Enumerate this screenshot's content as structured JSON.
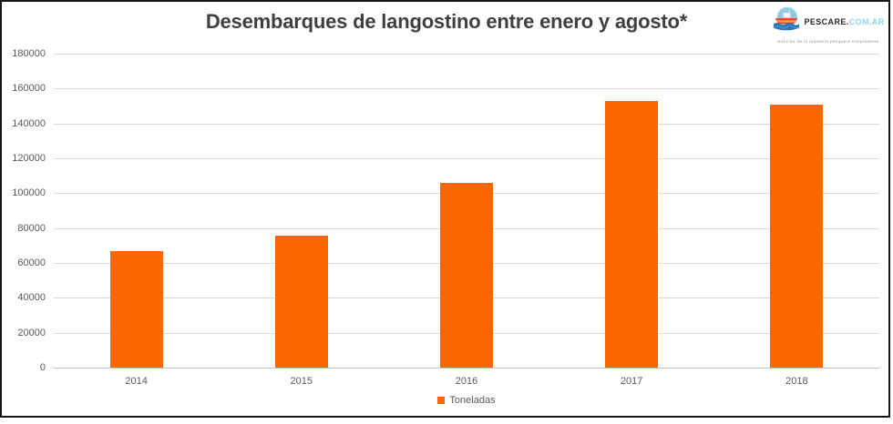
{
  "logo": {
    "name_dark": "PESCARE.",
    "name_light": "COM.AR",
    "tagline": "Noticias de la industria pesquera marplatense",
    "icon": "fishing-boat-icon"
  },
  "chart_data": {
    "type": "bar",
    "title": "Desembarques de langostino entre enero y agosto*",
    "categories": [
      "2014",
      "2015",
      "2016",
      "2017",
      "2018"
    ],
    "series": [
      {
        "name": "Toneladas",
        "values": [
          67000,
          75500,
          106000,
          153000,
          151000
        ]
      }
    ],
    "ylim": [
      0,
      180000
    ],
    "ytick_step": 20000,
    "grid": true,
    "legend_position": "bottom",
    "bar_color": "#FA6602",
    "title_color": "#3f3f3f",
    "axis_text_color": "#595959",
    "gridline_color": "#d9d9d9",
    "xlabel": "",
    "ylabel": ""
  }
}
